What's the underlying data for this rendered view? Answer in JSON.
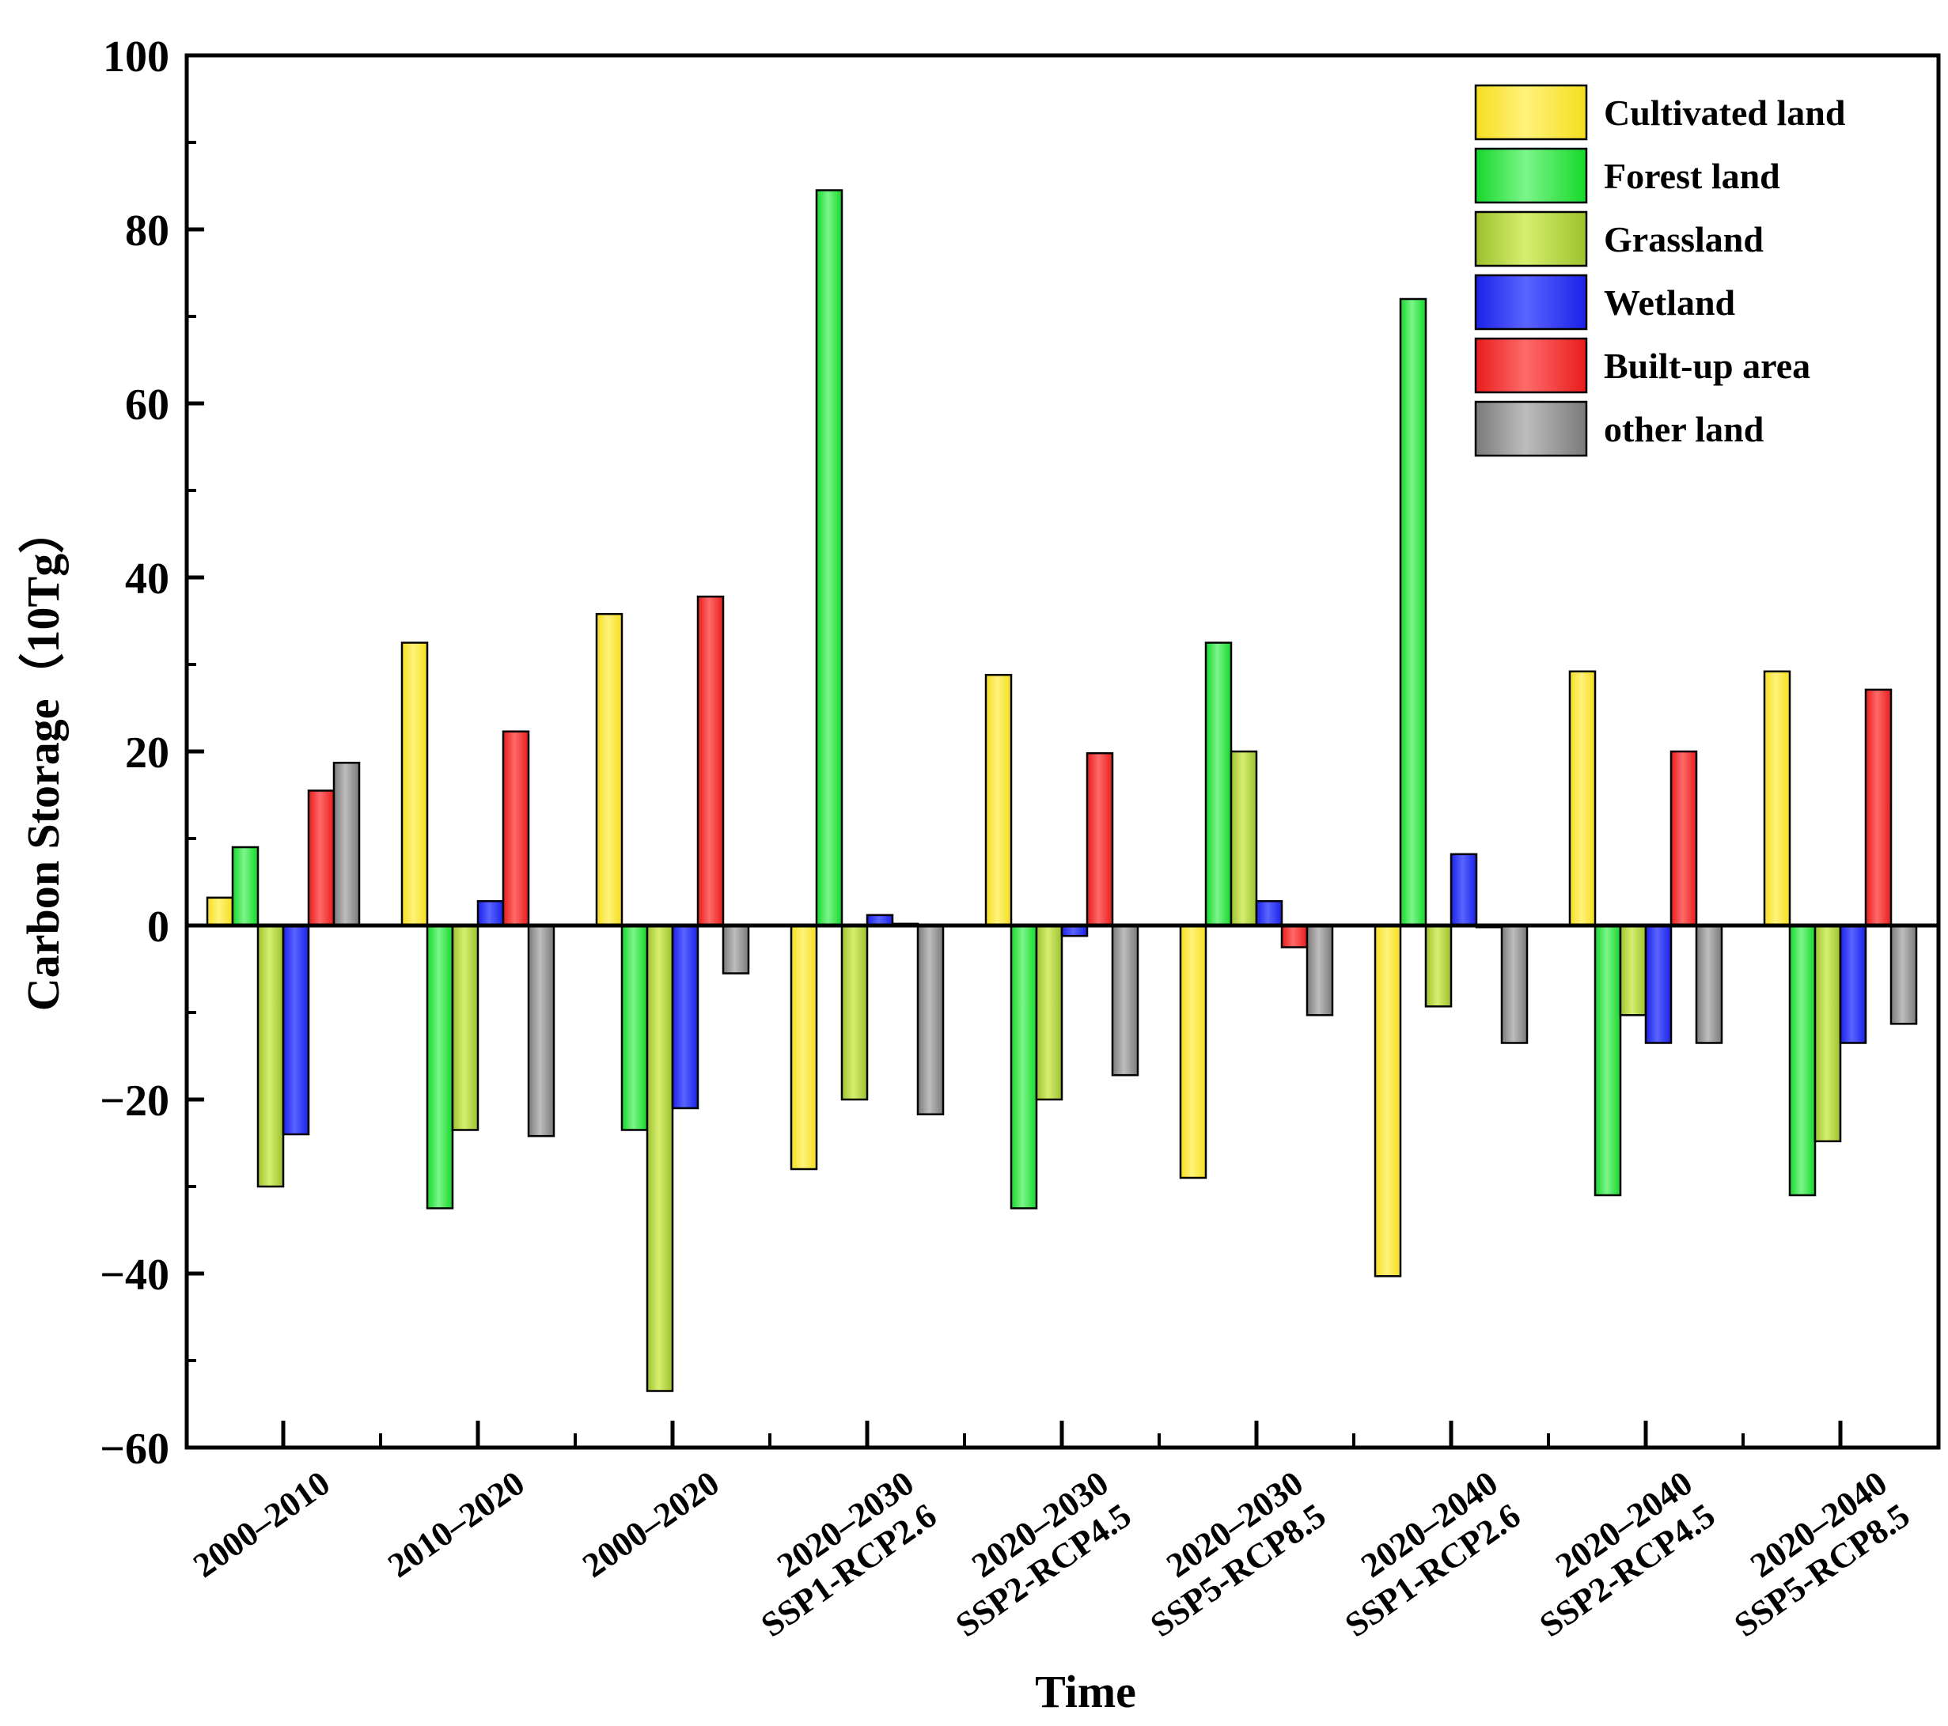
{
  "chart_data": {
    "type": "bar",
    "xlabel": "Time",
    "ylabel": "Carbon Storage（10Tg）",
    "ylim": [
      -60,
      100
    ],
    "yticks": [
      -60,
      -40,
      -20,
      0,
      20,
      40,
      60,
      80,
      100
    ],
    "ytick_labels": [
      "−60",
      "−40",
      "−20",
      "0",
      "20",
      "40",
      "60",
      "80",
      "100"
    ],
    "minor_ticks": true,
    "grid": false,
    "legend_position": "top-right",
    "categories": [
      [
        "2000–2010"
      ],
      [
        "2010–2020"
      ],
      [
        "2000–2020"
      ],
      [
        "2020–2030",
        "SSP1-RCP2.6"
      ],
      [
        "2020–2030",
        "SSP2-RCP4.5"
      ],
      [
        "2020–2030",
        "SSP5-RCP8.5"
      ],
      [
        "2020–2040",
        "SSP1-RCP2.6"
      ],
      [
        "2020–2040",
        "SSP2-RCP4.5"
      ],
      [
        "2020–2040",
        "SSP5-RCP8.5"
      ]
    ],
    "series": [
      {
        "name": "Cultivated land",
        "color": "#f5de1e",
        "colorLight": "#fff27a",
        "values": [
          3.2,
          32.5,
          35.8,
          -28,
          28.8,
          -29,
          -40.3,
          29.2,
          29.2
        ]
      },
      {
        "name": "Forest land",
        "color": "#15d82a",
        "colorLight": "#7cf58a",
        "values": [
          9.0,
          -32.5,
          -23.5,
          84.5,
          -32.5,
          32.5,
          72.0,
          -31,
          -31
        ]
      },
      {
        "name": "Grassland",
        "color": "#9cc22c",
        "colorLight": "#d7ee70",
        "values": [
          -30,
          -23.5,
          -53.5,
          -20,
          -20,
          20,
          -9.3,
          -10.3,
          -24.8
        ]
      },
      {
        "name": "Wetland",
        "color": "#1a22e8",
        "colorLight": "#5a64ff",
        "values": [
          -24,
          2.8,
          -21,
          1.2,
          -1.2,
          2.8,
          8.2,
          -13.5,
          -13.5
        ]
      },
      {
        "name": "Built-up area",
        "color": "#e81c1c",
        "colorLight": "#ff6a6a",
        "values": [
          15.5,
          22.3,
          37.8,
          0.2,
          19.8,
          -2.5,
          -0.2,
          20,
          27.1
        ]
      },
      {
        "name": "other land",
        "color": "#7a7a7a",
        "colorLight": "#bdbdbd",
        "values": [
          18.7,
          -24.2,
          -5.5,
          -21.7,
          -17.2,
          -10.3,
          -13.5,
          -13.5,
          -11.3
        ]
      }
    ]
  }
}
